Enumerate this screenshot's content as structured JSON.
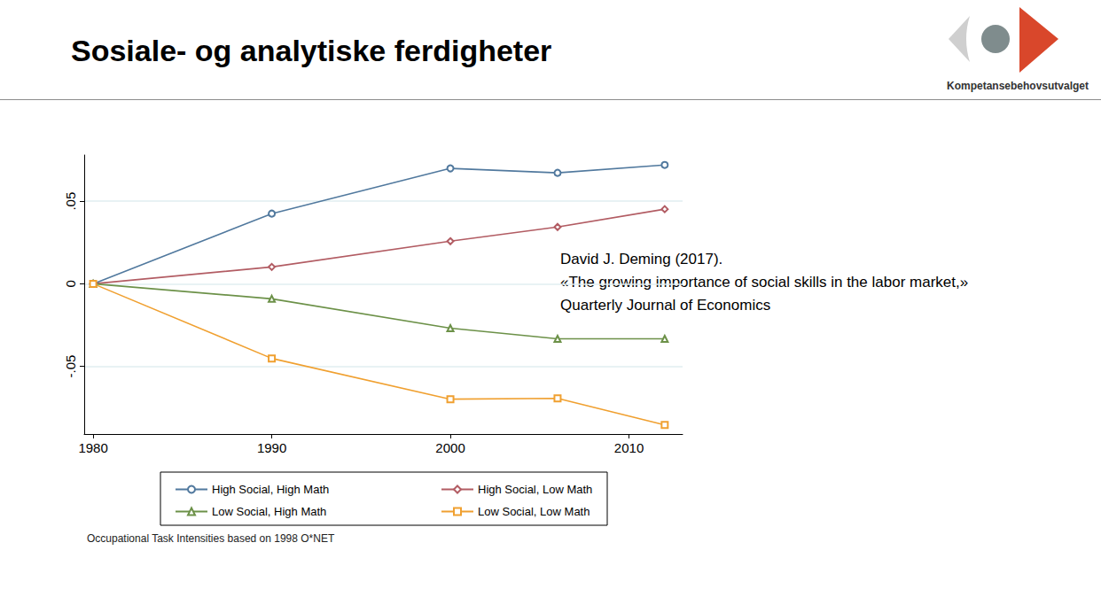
{
  "chart_data": {
    "type": "line",
    "title": "Sosiale- og analytiske ferdigheter",
    "x": [
      1980,
      1990,
      2000,
      2006,
      2012
    ],
    "series": [
      {
        "name": "High Social, High Math",
        "color": "#51799e",
        "marker": "circle",
        "values": [
          0,
          0.0425,
          0.0699,
          0.0672,
          0.072
        ]
      },
      {
        "name": "High Social, Low Math",
        "color": "#b25c63",
        "marker": "diamond",
        "values": [
          0,
          0.0102,
          0.0258,
          0.0344,
          0.0452
        ]
      },
      {
        "name": "Low Social, High Math",
        "color": "#6c9148",
        "marker": "triangle",
        "values": [
          0,
          -0.0091,
          -0.0269,
          -0.0333,
          -0.0333
        ]
      },
      {
        "name": "Low Social, Low Math",
        "color": "#f0a030",
        "marker": "square",
        "values": [
          0,
          -0.0452,
          -0.0699,
          -0.0694,
          -0.0855
        ]
      }
    ],
    "xlim": [
      1979.5,
      2013
    ],
    "xticks": [
      1980,
      1990,
      2000,
      2010
    ],
    "ylim": [
      -0.091,
      0.078
    ],
    "yticks": [
      {
        "value": -0.05,
        "label": "-.05"
      },
      0,
      {
        "value": 0.05,
        "label": ".05"
      }
    ],
    "grid": "y",
    "legend": "bottom",
    "annotations": [
      "David J. Deming (2017).",
      "«The growing importance of social skills in the labor market,»",
      "Quarterly Journal of Economics",
      "Occupational Task Intensities based on 1998 O*NET"
    ]
  },
  "logo": {
    "text": "Kompetansebehovsutvalget"
  }
}
